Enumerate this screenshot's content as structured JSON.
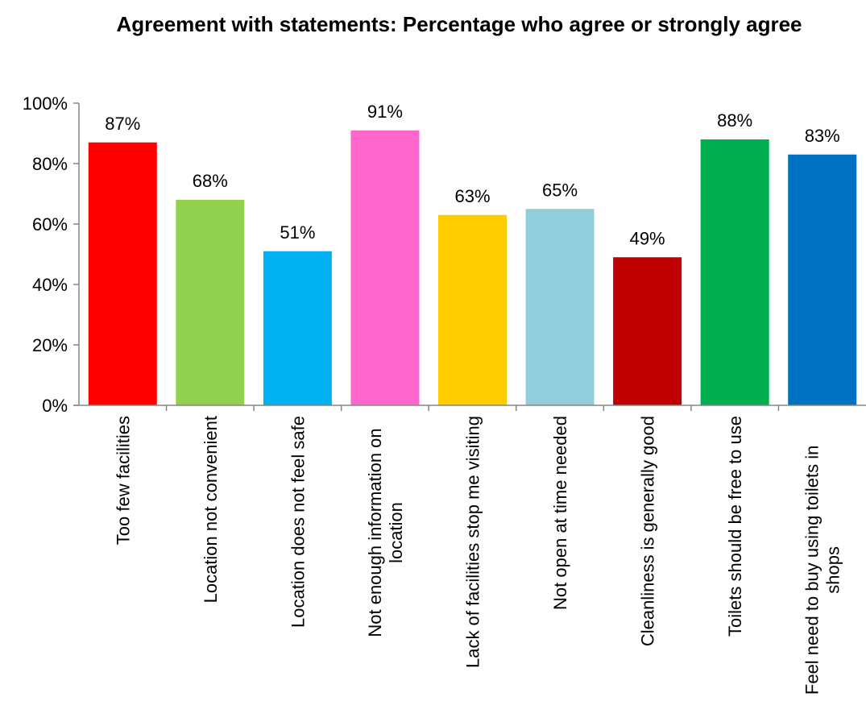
{
  "chart_data": {
    "type": "bar",
    "title": "Agreement with statements: Percentage who agree or strongly agree",
    "xlabel": "",
    "ylabel": "",
    "ylim": [
      0,
      100
    ],
    "y_ticks": [
      {
        "value": 0,
        "label": "0%"
      },
      {
        "value": 20,
        "label": "20%"
      },
      {
        "value": 40,
        "label": "40%"
      },
      {
        "value": 60,
        "label": "60%"
      },
      {
        "value": 80,
        "label": "80%"
      },
      {
        "value": 100,
        "label": "100%"
      }
    ],
    "grid": false,
    "legend": "none",
    "categories": [
      [
        "Too few facilities"
      ],
      [
        "Location not convenient"
      ],
      [
        "Location does not feel safe"
      ],
      [
        "Not enough information on",
        "location"
      ],
      [
        "Lack of facilities stop me visiting"
      ],
      [
        "Not open at time needed"
      ],
      [
        "Cleanliness is generally good"
      ],
      [
        "Toilets should be free to use"
      ],
      [
        "Feel need to buy using toilets in",
        "shops"
      ]
    ],
    "values": [
      87,
      68,
      51,
      91,
      63,
      65,
      49,
      88,
      83
    ],
    "value_labels": [
      "87%",
      "68%",
      "51%",
      "91%",
      "63%",
      "65%",
      "49%",
      "88%",
      "83%"
    ],
    "colors": [
      "#ff0000",
      "#92d050",
      "#00b0f0",
      "#ff66cc",
      "#ffcc00",
      "#92cddc",
      "#c00000",
      "#00b050",
      "#0070c0"
    ]
  }
}
